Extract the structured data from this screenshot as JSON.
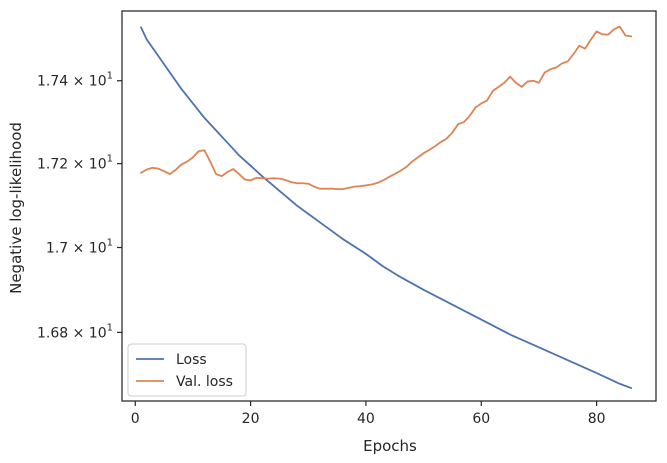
{
  "chart_data": {
    "type": "line",
    "title": "",
    "xlabel": "Epochs",
    "ylabel": "Negative log-likelihood",
    "xlim": [
      -2.3,
      90.3
    ],
    "ylim": [
      16.64,
      17.57
    ],
    "yscale": "log",
    "grid": false,
    "legend_position": "lower-left",
    "x_ticks": [
      0,
      20,
      40,
      60,
      80
    ],
    "y_ticks": [
      {
        "value": 16.8,
        "mantissa": "1.68",
        "exponent": "1"
      },
      {
        "value": 17.0,
        "mantissa": "1.7",
        "exponent": "1"
      },
      {
        "value": 17.2,
        "mantissa": "1.72",
        "exponent": "1"
      },
      {
        "value": 17.4,
        "mantissa": "1.74",
        "exponent": "1"
      }
    ],
    "series": [
      {
        "name": "Loss",
        "color": "#4c72b0",
        "x": [
          1,
          2,
          4,
          6,
          8,
          10,
          12,
          14,
          16,
          18,
          20,
          22,
          25,
          28,
          30,
          33,
          36,
          40,
          43,
          46,
          50,
          55,
          60,
          65,
          70,
          75,
          80,
          84,
          86
        ],
        "y": [
          17.53,
          17.5,
          17.46,
          17.42,
          17.38,
          17.345,
          17.31,
          17.28,
          17.25,
          17.22,
          17.195,
          17.17,
          17.135,
          17.1,
          17.08,
          17.05,
          17.02,
          16.985,
          16.955,
          16.93,
          16.9,
          16.865,
          16.83,
          16.795,
          16.765,
          16.735,
          16.705,
          16.68,
          16.67
        ]
      },
      {
        "name": "Val. loss",
        "color": "#dd8452",
        "x": [
          1,
          2,
          3,
          4,
          5,
          6,
          7,
          8,
          9,
          10,
          11,
          12,
          13,
          14,
          15,
          16,
          17,
          18,
          19,
          20,
          21,
          22,
          23,
          24,
          25,
          26,
          27,
          28,
          29,
          30,
          31,
          32,
          33,
          34,
          35,
          36,
          37,
          38,
          39,
          40,
          41,
          42,
          43,
          44,
          45,
          46,
          47,
          48,
          49,
          50,
          51,
          52,
          53,
          54,
          55,
          56,
          57,
          58,
          59,
          60,
          61,
          62,
          63,
          64,
          65,
          66,
          67,
          68,
          69,
          70,
          71,
          72,
          73,
          74,
          75,
          76,
          77,
          78,
          79,
          80,
          81,
          82,
          83,
          84,
          85,
          86
        ],
        "y": [
          17.178,
          17.186,
          17.19,
          17.188,
          17.182,
          17.175,
          17.185,
          17.198,
          17.205,
          17.215,
          17.23,
          17.232,
          17.205,
          17.175,
          17.17,
          17.18,
          17.187,
          17.175,
          17.162,
          17.16,
          17.166,
          17.165,
          17.164,
          17.165,
          17.164,
          17.161,
          17.156,
          17.153,
          17.153,
          17.152,
          17.145,
          17.14,
          17.14,
          17.14,
          17.139,
          17.139,
          17.142,
          17.145,
          17.146,
          17.148,
          17.15,
          17.154,
          17.16,
          17.168,
          17.175,
          17.183,
          17.192,
          17.205,
          17.215,
          17.225,
          17.233,
          17.242,
          17.252,
          17.26,
          17.275,
          17.295,
          17.3,
          17.315,
          17.335,
          17.345,
          17.352,
          17.375,
          17.385,
          17.395,
          17.41,
          17.395,
          17.385,
          17.398,
          17.4,
          17.395,
          17.42,
          17.428,
          17.432,
          17.442,
          17.447,
          17.465,
          17.485,
          17.478,
          17.5,
          17.52,
          17.513,
          17.512,
          17.525,
          17.532,
          17.51,
          17.508
        ]
      }
    ]
  }
}
